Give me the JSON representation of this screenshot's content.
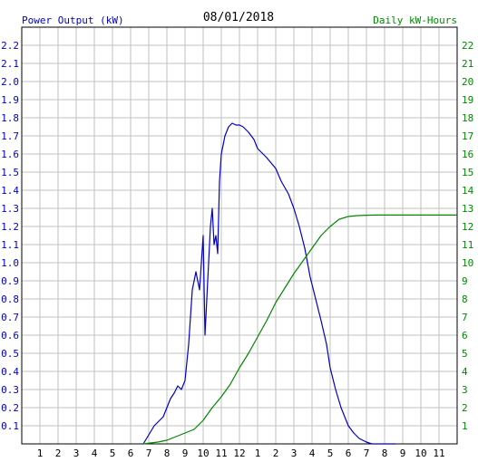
{
  "chart_data": {
    "type": "line",
    "title": "08/01/2018",
    "ylabel_left": "Power Output (kW)",
    "ylabel_right": "Daily kW-Hours",
    "colors": {
      "power": "#0000cc",
      "energy": "#008800",
      "grid": "#c0c0c0"
    },
    "x_ticks": [
      "1",
      "2",
      "3",
      "4",
      "5",
      "6",
      "7",
      "8",
      "9",
      "10",
      "11",
      "12",
      "1",
      "2",
      "3",
      "4",
      "5",
      "6",
      "7",
      "8",
      "9",
      "10",
      "11"
    ],
    "left_ticks": [
      "0.1",
      "0.2",
      "0.3",
      "0.4",
      "0.5",
      "0.6",
      "0.7",
      "0.8",
      "0.9",
      "1.0",
      "1.1",
      "1.2",
      "1.3",
      "1.4",
      "1.5",
      "1.6",
      "1.7",
      "1.8",
      "1.9",
      "2.0",
      "2.1",
      "2.2"
    ],
    "right_ticks": [
      "1",
      "2",
      "3",
      "4",
      "5",
      "6",
      "7",
      "8",
      "9",
      "10",
      "11",
      "12",
      "13",
      "14",
      "15",
      "16",
      "17",
      "18",
      "19",
      "20",
      "21",
      "22"
    ],
    "ylim_left": [
      0,
      2.3
    ],
    "ylim_right": [
      0,
      23
    ],
    "xlim_hours": [
      0,
      24
    ],
    "grid": true,
    "series": [
      {
        "key": "power",
        "axis": "left",
        "x": [
          6.7,
          7.0,
          7.3,
          7.5,
          7.8,
          8.0,
          8.2,
          8.4,
          8.6,
          8.8,
          9.0,
          9.2,
          9.4,
          9.6,
          9.8,
          10.0,
          10.1,
          10.2,
          10.3,
          10.4,
          10.5,
          10.6,
          10.7,
          10.8,
          10.9,
          11.0,
          11.2,
          11.4,
          11.5,
          11.6,
          11.8,
          12.0,
          12.2,
          12.5,
          12.8,
          13.0,
          13.5,
          14.0,
          14.3,
          14.7,
          15.0,
          15.3,
          15.6,
          15.9,
          16.2,
          16.5,
          16.8,
          17.0,
          17.3,
          17.6,
          18.0,
          18.3,
          18.6,
          19.0,
          19.3,
          19.6,
          20.0,
          20.3,
          20.6
        ],
        "y": [
          0.0,
          0.05,
          0.1,
          0.12,
          0.15,
          0.2,
          0.25,
          0.28,
          0.32,
          0.3,
          0.35,
          0.55,
          0.85,
          0.95,
          0.85,
          1.15,
          0.6,
          0.8,
          1.0,
          1.2,
          1.3,
          1.1,
          1.15,
          1.05,
          1.45,
          1.6,
          1.7,
          1.75,
          1.76,
          1.77,
          1.76,
          1.76,
          1.75,
          1.72,
          1.68,
          1.63,
          1.58,
          1.52,
          1.45,
          1.38,
          1.3,
          1.2,
          1.08,
          0.92,
          0.8,
          0.68,
          0.55,
          0.42,
          0.3,
          0.2,
          0.1,
          0.06,
          0.03,
          0.01,
          0.0,
          0.0,
          0.0,
          0.0,
          0.0
        ]
      },
      {
        "key": "energy",
        "axis": "right",
        "x": [
          6.7,
          7.5,
          8.0,
          8.5,
          9.0,
          9.5,
          10.0,
          10.5,
          11.0,
          11.5,
          12.0,
          12.5,
          13.0,
          13.5,
          14.0,
          14.5,
          15.0,
          15.5,
          16.0,
          16.5,
          17.0,
          17.5,
          18.0,
          18.5,
          19.0,
          19.5,
          20.0,
          21.0,
          22.0,
          23.0,
          24.0
        ],
        "y": [
          0.0,
          0.1,
          0.2,
          0.4,
          0.6,
          0.8,
          1.3,
          2.0,
          2.6,
          3.3,
          4.2,
          5.0,
          5.9,
          6.8,
          7.8,
          8.6,
          9.4,
          10.1,
          10.8,
          11.5,
          12.0,
          12.4,
          12.55,
          12.6,
          12.62,
          12.63,
          12.63,
          12.63,
          12.63,
          12.63,
          12.63
        ]
      }
    ]
  }
}
